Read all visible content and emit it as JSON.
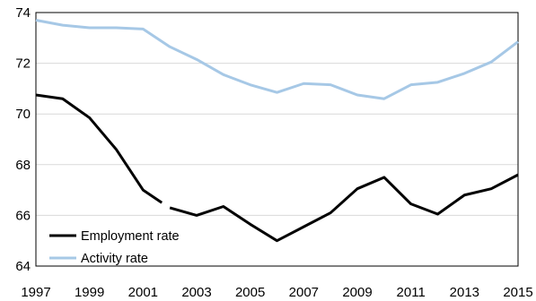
{
  "chart_data": {
    "type": "line",
    "title": "",
    "xlabel": "",
    "ylabel": "",
    "xlim": [
      1997,
      2015
    ],
    "ylim": [
      64,
      74
    ],
    "yticks": [
      64,
      66,
      68,
      70,
      72,
      74
    ],
    "xticks": [
      1997,
      1999,
      2001,
      2003,
      2005,
      2007,
      2009,
      2011,
      2013,
      2015
    ],
    "grid": "horizontal",
    "legend": "bottom-left",
    "x": [
      1997,
      1998,
      1999,
      2000,
      2001,
      2002,
      2003,
      2004,
      2005,
      2006,
      2007,
      2008,
      2009,
      2010,
      2011,
      2012,
      2013,
      2014,
      2015
    ],
    "series": [
      {
        "name": "Employment rate",
        "color": "#000000",
        "values": [
          70.75,
          70.6,
          69.85,
          68.6,
          67.0,
          null,
          66.0,
          66.35,
          65.65,
          65.0,
          65.55,
          66.1,
          67.05,
          67.5,
          66.45,
          66.05,
          66.8,
          67.05,
          67.6
        ],
        "segment_break": {
          "from_x": 2001,
          "from_y": 67.0,
          "gap_start": [
            2001.7,
            66.5
          ],
          "gap_end": [
            2002.0,
            66.3
          ],
          "to_x": 2003,
          "to_y": 66.0
        }
      },
      {
        "name": "Activity rate",
        "color": "#a6c8e6",
        "values": [
          73.7,
          73.5,
          73.4,
          73.4,
          73.35,
          72.65,
          72.15,
          71.55,
          71.15,
          70.85,
          71.2,
          71.15,
          70.75,
          70.6,
          71.15,
          71.25,
          71.6,
          72.05,
          72.85
        ]
      }
    ]
  }
}
